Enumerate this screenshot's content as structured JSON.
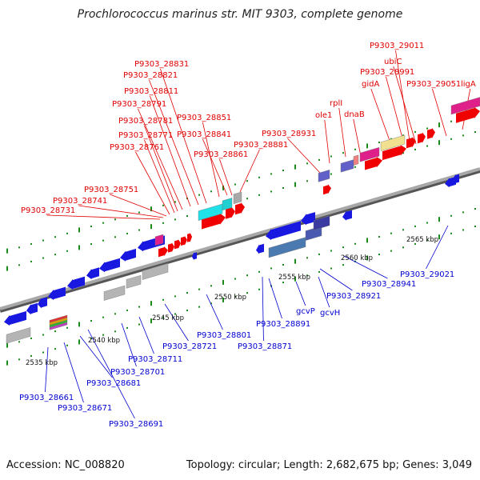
{
  "title": "Prochlorococcus marinus str. MIT 9303, complete genome",
  "footer": {
    "accession": "Accession: NC_008820",
    "summary": "Topology: circular; Length: 2,682,675 bp; Genes: 3,049"
  },
  "colors": {
    "top_label": "#e00000",
    "bottom_label": "#0000d0",
    "backbone": "#8c8c8c",
    "tick": "#1a8a1a"
  },
  "scale_ticks": [
    "2535 kbp",
    "2540 kbp",
    "2545 kbp",
    "2550 kbp",
    "2555 kbp",
    "2560 kbp",
    "2565 kbp"
  ],
  "top_labels": [
    "P9303_29011",
    "ubiC",
    "P9303_28991",
    "gidA",
    "P9303_29051",
    "ligA",
    "rplI",
    "dnaB",
    "ole1",
    "P9303_28931",
    "P9303_28881",
    "P9303_28861",
    "P9303_28851",
    "P9303_28841",
    "P9303_28831",
    "P9303_28821",
    "P9303_28811",
    "P9303_28791",
    "P9303_28781",
    "P9303_28771",
    "P9303_28761",
    "P9303_28751",
    "P9303_28741",
    "P9303_28731"
  ],
  "bottom_labels": [
    "P9303_28661",
    "P9303_28671",
    "P9303_28681",
    "P9303_28691",
    "P9303_28701",
    "P9303_28711",
    "P9303_28721",
    "P9303_28801",
    "P9303_28871",
    "P9303_28891",
    "gcvP",
    "gcvH",
    "P9303_28921",
    "P9303_28941",
    "P9303_29021"
  ]
}
